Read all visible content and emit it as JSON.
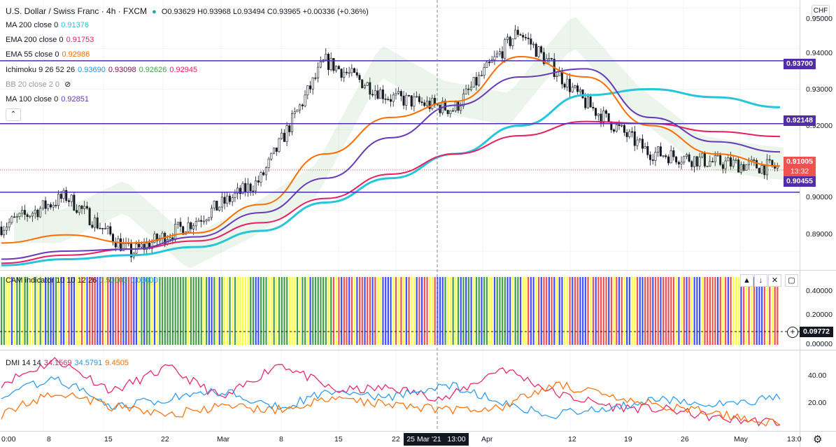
{
  "header": {
    "symbol": "U.S. Dollar / Swiss Franc · 4h · FXCM",
    "ohlc": "O0.93629 H0.93968 L0.93494 C0.93965 +0.00336 (+0.36%)",
    "currency_badge": "CHF"
  },
  "legend": {
    "ma200": {
      "name": "MA 200 close 0",
      "value": "0.91376",
      "color": "#26c6da"
    },
    "ema200": {
      "name": "EMA 200 close 0",
      "value": "0.91753",
      "color": "#e91e63"
    },
    "ema55": {
      "name": "EMA 55 close 0",
      "value": "0.92986",
      "color": "#ff6d00"
    },
    "ichimoku": {
      "name": "Ichimoku 9 26 52 26",
      "v1": "0.93690",
      "v2": "0.93098",
      "v3": "0.92626",
      "v4": "0.92945",
      "c1": "#2196f3",
      "c2": "#880e4f",
      "c3": "#43a047",
      "c4": "#e91e63"
    },
    "bb": {
      "name": "BB 20 close 2 0"
    },
    "ma100": {
      "name": "MA 100 close 0",
      "value": "0.92851",
      "color": "#673ab7"
    },
    "collapse_icon": "chevron-up-icon"
  },
  "cam_legend": {
    "name": "CAM indicator 10 10 12 26",
    "v1": "0.50000",
    "v2": "0.00000"
  },
  "dmi_legend": {
    "name": "DMI 14 14",
    "v1": "34.1569",
    "v2": "34.5791",
    "v3": "9.4505",
    "c1": "#e91e63",
    "c2": "#2196f3",
    "c3": "#ff6d00"
  },
  "price_axis": {
    "ticks": [
      "0.95000",
      "0.94000",
      "0.93000",
      "0.92000",
      "0.91000",
      "0.90000",
      "0.89000"
    ],
    "tags": {
      "r1": "0.93700",
      "r2": "0.92148",
      "current": "0.91005",
      "countdown": "13:32",
      "s1": "0.90455"
    }
  },
  "cam_axis": {
    "ticks": [
      "0.40000",
      "0.20000",
      "0.00000"
    ],
    "tag": "0.09772"
  },
  "dmi_axis": {
    "ticks": [
      "40.00",
      "20.00"
    ]
  },
  "time_axis": {
    "labels": [
      "0:00",
      "8",
      "15",
      "22",
      "Mar",
      "8",
      "15",
      "22",
      "Apr",
      "12",
      "19",
      "26",
      "May",
      "13:0"
    ],
    "crosshair_label": "25 Mar '21   13:00"
  },
  "pane_buttons": [
    "▲",
    "↓",
    "✕",
    "▢"
  ],
  "chart_data": [
    {
      "type": "candlestick",
      "title": "U.S. Dollar / Swiss Franc · 4h · FXCM",
      "x": [
        "Feb 1",
        "Feb 8",
        "Feb 15",
        "Feb 22",
        "Mar 1",
        "Mar 8",
        "Mar 15",
        "Mar 22",
        "Apr 1",
        "Apr 12",
        "Apr 19",
        "Apr 26",
        "May 3"
      ],
      "close_path": [
        0.896,
        0.9035,
        0.8895,
        0.8975,
        0.9075,
        0.937,
        0.928,
        0.925,
        0.9445,
        0.927,
        0.9145,
        0.912,
        0.9105
      ],
      "horizontal_levels": [
        0.937,
        0.92148,
        0.90455
      ],
      "ylim": [
        0.8855,
        0.952
      ],
      "series": [
        {
          "name": "MA 200",
          "values": [
            0.8865,
            0.888,
            0.889,
            0.891,
            0.895,
            0.902,
            0.908,
            0.914,
            0.921,
            0.9285,
            0.93,
            0.928,
            0.9255
          ],
          "color": "#26c6da"
        },
        {
          "name": "EMA 200",
          "values": [
            0.887,
            0.889,
            0.8905,
            0.8925,
            0.897,
            0.903,
            0.909,
            0.914,
            0.9185,
            0.922,
            0.9215,
            0.9195,
            0.9183
          ],
          "color": "#e91e63"
        },
        {
          "name": "EMA 55",
          "values": [
            0.892,
            0.894,
            0.892,
            0.8945,
            0.9015,
            0.914,
            0.923,
            0.927,
            0.938,
            0.933,
            0.921,
            0.914,
            0.911
          ],
          "color": "#ff6d00"
        },
        {
          "name": "MA 100",
          "values": [
            0.888,
            0.89,
            0.8905,
            0.8935,
            0.8995,
            0.908,
            0.918,
            0.926,
            0.933,
            0.935,
            0.923,
            0.917,
            0.9145
          ],
          "color": "#673ab7"
        }
      ]
    },
    {
      "type": "bar",
      "title": "CAM indicator 10 10 12 26",
      "bar_value": 0.5,
      "ylim": [
        0,
        0.5
      ],
      "color_cycle": [
        "yellow",
        "green",
        "red",
        "blue"
      ]
    },
    {
      "type": "line",
      "title": "DMI 14 14",
      "ylim": [
        5,
        55
      ],
      "series": [
        {
          "name": "+DI",
          "values": [
            35,
            50,
            30,
            45,
            25,
            48,
            30,
            32,
            25,
            45,
            28,
            20,
            18,
            12,
            10
          ],
          "color": "#e91e63"
        },
        {
          "name": "-DI",
          "values": [
            28,
            38,
            20,
            25,
            30,
            20,
            30,
            25,
            35,
            22,
            15,
            20,
            25,
            22,
            26
          ],
          "color": "#2196f3"
        },
        {
          "name": "ADX",
          "values": [
            15,
            30,
            20,
            15,
            20,
            18,
            25,
            22,
            18,
            20,
            35,
            25,
            20,
            15,
            9
          ],
          "color": "#ff6d00"
        }
      ]
    }
  ]
}
